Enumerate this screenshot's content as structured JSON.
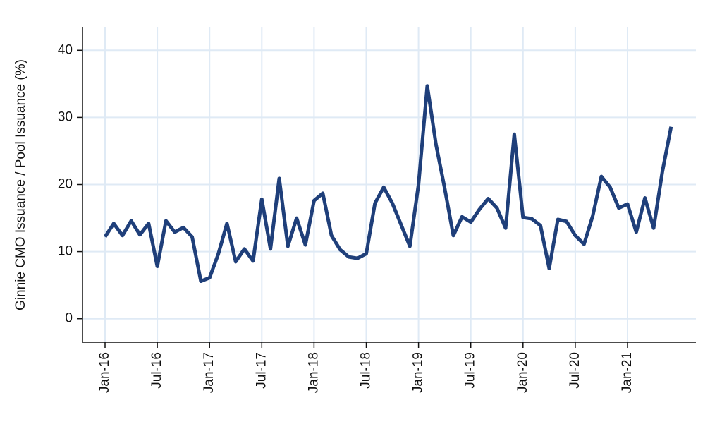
{
  "chart_data": {
    "type": "line",
    "y_label": "Ginnie CMO Issuance / Pool Issuance (%)",
    "categories": [
      "Jan-16",
      null,
      null,
      null,
      null,
      null,
      "Jul-16",
      null,
      null,
      null,
      null,
      null,
      "Jan-17",
      null,
      null,
      null,
      null,
      null,
      "Jul-17",
      null,
      null,
      null,
      null,
      null,
      "Jan-18",
      null,
      null,
      null,
      null,
      null,
      "Jul-18",
      null,
      null,
      null,
      null,
      null,
      "Jan-19",
      null,
      null,
      null,
      null,
      null,
      "Jul-19",
      null,
      null,
      null,
      null,
      null,
      "Jan-20",
      null,
      null,
      null,
      null,
      null,
      "Jul-20",
      null,
      null,
      null,
      null,
      null,
      "Jan-21",
      null,
      null,
      null,
      null,
      null
    ],
    "series": [
      {
        "color": "#1f3f7a",
        "values": [
          12.2,
          14.2,
          12.4,
          14.6,
          12.5,
          14.2,
          7.8,
          14.6,
          12.9,
          13.6,
          12.2,
          5.6,
          6.1,
          9.6,
          14.2,
          8.5,
          10.4,
          8.6,
          17.8,
          10.4,
          20.9,
          10.8,
          15.0,
          11.0,
          17.6,
          18.7,
          12.4,
          10.3,
          9.2,
          9.0,
          9.7,
          17.2,
          19.6,
          17.2,
          14.0,
          10.8,
          20.0,
          34.7,
          26.0,
          19.5,
          12.4,
          15.2,
          14.4,
          16.3,
          17.9,
          16.5,
          13.5,
          27.5,
          15.1,
          14.9,
          13.9,
          7.5,
          14.8,
          14.5,
          12.4,
          11.1,
          15.3,
          21.2,
          19.6,
          16.5,
          17.1,
          12.9,
          18.0,
          13.5,
          21.9,
          28.6
        ]
      }
    ],
    "ylim": [
      -3.5,
      43.5
    ],
    "yticks": [
      0,
      10,
      20,
      30,
      40
    ],
    "grid": true
  }
}
